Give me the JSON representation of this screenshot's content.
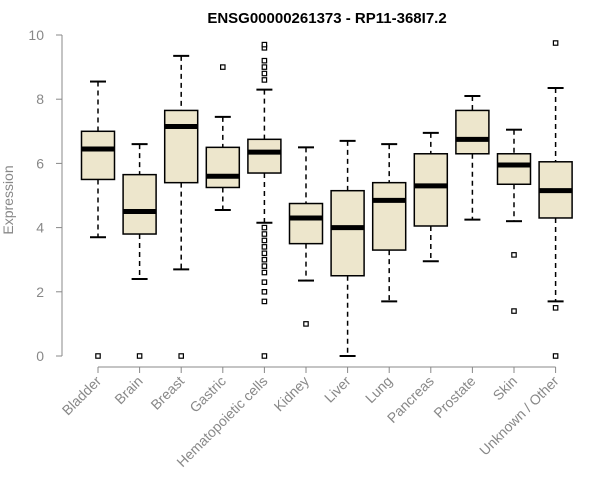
{
  "chart_data": {
    "type": "boxplot",
    "title": "ENSG00000261373 - RP11-368I7.2",
    "ylabel": "Expression",
    "xlabel": "",
    "ylim": [
      0,
      10
    ],
    "yticks": [
      0,
      2,
      4,
      6,
      8,
      10
    ],
    "fill_color": "#ede6cc",
    "categories": [
      "Bladder",
      "Brain",
      "Breast",
      "Gastric",
      "Hematopoietic cells",
      "Kidney",
      "Liver",
      "Lung",
      "Pancreas",
      "Prostate",
      "Skin",
      "Unknown / Other"
    ],
    "boxes": [
      {
        "name": "Bladder",
        "whislo": 3.7,
        "q1": 5.5,
        "med": 6.45,
        "q3": 7.0,
        "whishi": 8.55,
        "fliers": [
          0.0
        ]
      },
      {
        "name": "Brain",
        "whislo": 2.4,
        "q1": 3.8,
        "med": 4.5,
        "q3": 5.65,
        "whishi": 6.6,
        "fliers": [
          0.0
        ]
      },
      {
        "name": "Breast",
        "whislo": 2.7,
        "q1": 5.4,
        "med": 7.15,
        "q3": 7.65,
        "whishi": 9.35,
        "fliers": [
          0.0
        ]
      },
      {
        "name": "Gastric",
        "whislo": 4.55,
        "q1": 5.25,
        "med": 5.6,
        "q3": 6.5,
        "whishi": 7.45,
        "fliers": [
          9.0
        ]
      },
      {
        "name": "Hematopoietic cells",
        "whislo": 4.15,
        "q1": 5.7,
        "med": 6.35,
        "q3": 6.75,
        "whishi": 8.3,
        "fliers": [
          0.0,
          1.7,
          2.0,
          2.3,
          2.6,
          2.8,
          3.0,
          3.2,
          3.4,
          3.6,
          3.8,
          4.0,
          8.6,
          8.8,
          9.0,
          9.2,
          9.6,
          9.7
        ]
      },
      {
        "name": "Kidney",
        "whislo": 2.35,
        "q1": 3.5,
        "med": 4.3,
        "q3": 4.75,
        "whishi": 6.5,
        "fliers": [
          1.0
        ]
      },
      {
        "name": "Liver",
        "whislo": 0.0,
        "q1": 2.5,
        "med": 4.0,
        "q3": 5.15,
        "whishi": 6.7,
        "fliers": []
      },
      {
        "name": "Lung",
        "whislo": 1.7,
        "q1": 3.3,
        "med": 4.85,
        "q3": 5.4,
        "whishi": 6.6,
        "fliers": []
      },
      {
        "name": "Pancreas",
        "whislo": 2.95,
        "q1": 4.05,
        "med": 5.3,
        "q3": 6.3,
        "whishi": 6.95,
        "fliers": []
      },
      {
        "name": "Prostate",
        "whislo": 4.25,
        "q1": 6.3,
        "med": 6.75,
        "q3": 7.65,
        "whishi": 8.1,
        "fliers": []
      },
      {
        "name": "Skin",
        "whislo": 4.2,
        "q1": 5.35,
        "med": 5.95,
        "q3": 6.3,
        "whishi": 7.05,
        "fliers": [
          1.4,
          3.15
        ]
      },
      {
        "name": "Unknown / Other",
        "whislo": 1.7,
        "q1": 4.3,
        "med": 5.15,
        "q3": 6.05,
        "whishi": 8.35,
        "fliers": [
          0.0,
          1.5,
          9.75
        ]
      }
    ]
  }
}
